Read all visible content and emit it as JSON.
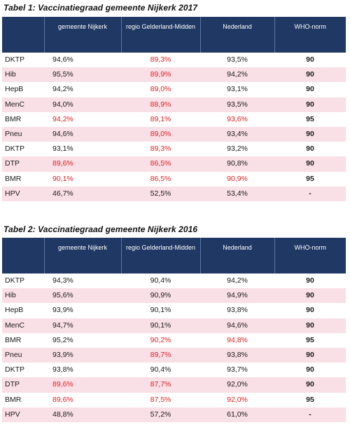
{
  "table1": {
    "caption": "Tabel 1: Vaccinatiegraad gemeente Nijkerk 2017",
    "headers": [
      "",
      "gemeente Nijkerk",
      "regio Gelderland-Midden",
      "Nederland",
      "WHO-norm"
    ],
    "rows": [
      {
        "name": "DKTP",
        "nijkerk": "94,6%",
        "regio": "89,3%",
        "nederland": "93,5%",
        "who": "90",
        "shaded": false,
        "red": [
          "regio"
        ]
      },
      {
        "name": "Hib",
        "nijkerk": "95,5%",
        "regio": "89,9%",
        "nederland": "94,2%",
        "who": "90",
        "shaded": true,
        "red": [
          "regio"
        ]
      },
      {
        "name": "HepB",
        "nijkerk": "94,2%",
        "regio": "89,0%",
        "nederland": "93,1%",
        "who": "90",
        "shaded": false,
        "red": [
          "regio"
        ]
      },
      {
        "name": "MenC",
        "nijkerk": "94,0%",
        "regio": "88,9%",
        "nederland": "93,5%",
        "who": "90",
        "shaded": true,
        "red": [
          "regio"
        ]
      },
      {
        "name": "BMR",
        "nijkerk": "94,2%",
        "regio": "89,1%",
        "nederland": "93,6%",
        "who": "95",
        "shaded": false,
        "red": [
          "nijkerk",
          "regio",
          "nederland"
        ]
      },
      {
        "name": "Pneu",
        "nijkerk": "94,6%",
        "regio": "89,0%",
        "nederland": "93,4%",
        "who": "90",
        "shaded": true,
        "red": [
          "regio"
        ]
      },
      {
        "name": "DKTP",
        "nijkerk": "93,1%",
        "regio": "89,3%",
        "nederland": "93,2%",
        "who": "90",
        "shaded": false,
        "red": [
          "regio"
        ]
      },
      {
        "name": "DTP",
        "nijkerk": "89,6%",
        "regio": "86,5%",
        "nederland": "90,8%",
        "who": "90",
        "shaded": true,
        "red": [
          "nijkerk",
          "regio"
        ]
      },
      {
        "name": "BMR",
        "nijkerk": "90,1%",
        "regio": "86,5%",
        "nederland": "90,9%",
        "who": "95",
        "shaded": false,
        "red": [
          "nijkerk",
          "regio",
          "nederland"
        ]
      },
      {
        "name": "HPV",
        "nijkerk": "46,7%",
        "regio": "52,5%",
        "nederland": "53,4%",
        "who": "-",
        "shaded": true,
        "red": []
      }
    ]
  },
  "table2": {
    "caption": "Tabel 2: Vaccinatiegraad gemeente Nijkerk 2016",
    "headers": [
      "",
      "gemeente Nijkerk",
      "regio Gelderland-Midden",
      "Nederland",
      "WHO-norm"
    ],
    "rows": [
      {
        "name": "DKTP",
        "nijkerk": "94,3%",
        "regio": "90,4%",
        "nederland": "94,2%",
        "who": "90",
        "shaded": false,
        "red": []
      },
      {
        "name": "Hib",
        "nijkerk": "95,6%",
        "regio": "90,9%",
        "nederland": "94,9%",
        "who": "90",
        "shaded": true,
        "red": []
      },
      {
        "name": "HepB",
        "nijkerk": "93,9%",
        "regio": "90,1%",
        "nederland": "93,8%",
        "who": "90",
        "shaded": false,
        "red": []
      },
      {
        "name": "MenC",
        "nijkerk": "94,7%",
        "regio": "90,1%",
        "nederland": "94,6%",
        "who": "90",
        "shaded": true,
        "red": []
      },
      {
        "name": "BMR",
        "nijkerk": "95,2%",
        "regio": "90,2%",
        "nederland": "94,8%",
        "who": "95",
        "shaded": false,
        "red": [
          "regio",
          "nederland"
        ]
      },
      {
        "name": "Pneu",
        "nijkerk": "93,9%",
        "regio": "89,7%",
        "nederland": "93,8%",
        "who": "90",
        "shaded": true,
        "red": [
          "regio"
        ]
      },
      {
        "name": "DKTP",
        "nijkerk": "93,8%",
        "regio": "90,4%",
        "nederland": "93,7%",
        "who": "90",
        "shaded": false,
        "red": []
      },
      {
        "name": "DTP",
        "nijkerk": "89,6%",
        "regio": "87,7%",
        "nederland": "92,0%",
        "who": "90",
        "shaded": true,
        "red": [
          "nijkerk",
          "regio"
        ]
      },
      {
        "name": "BMR",
        "nijkerk": "89,6%",
        "regio": "87,5%",
        "nederland": "92,0%",
        "who": "95",
        "shaded": false,
        "red": [
          "nijkerk",
          "regio",
          "nederland"
        ]
      },
      {
        "name": "HPV",
        "nijkerk": "48,8%",
        "regio": "57,2%",
        "nederland": "61,0%",
        "who": "-",
        "shaded": true,
        "red": []
      }
    ]
  },
  "colors": {
    "header_bg": "#203864",
    "header_text": "#ffffff",
    "shaded_row": "#f9dfe6",
    "below_norm": "#e11d1d"
  }
}
